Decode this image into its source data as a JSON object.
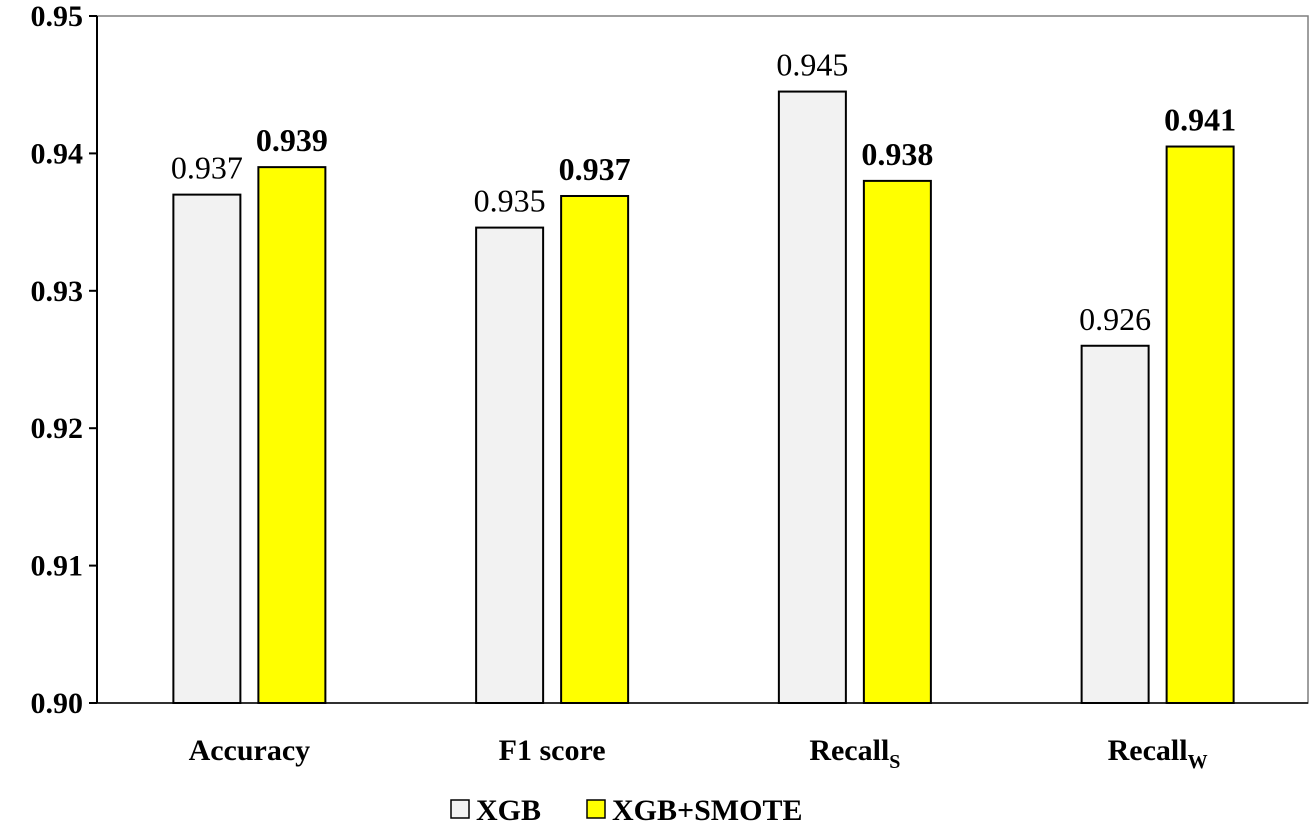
{
  "chart_data": {
    "type": "bar",
    "categories": [
      {
        "label": "Accuracy",
        "sub": ""
      },
      {
        "label": "F1 score",
        "sub": ""
      },
      {
        "label": "Recall",
        "sub": "S"
      },
      {
        "label": "Recall",
        "sub": "W"
      }
    ],
    "series": [
      {
        "name": "XGB",
        "color": "#f2f2f2",
        "values": [
          0.937,
          0.9346,
          0.9445,
          0.926
        ],
        "labels": [
          "0.937",
          "0.935",
          "0.945",
          "0.926"
        ],
        "label_bold": false
      },
      {
        "name": "XGB+SMOTE",
        "color": "#ffff00",
        "values": [
          0.939,
          0.9369,
          0.938,
          0.9405
        ],
        "labels": [
          "0.939",
          "0.937",
          "0.938",
          "0.941"
        ],
        "label_bold": true
      }
    ],
    "yticks": [
      "0.90",
      "0.91",
      "0.92",
      "0.93",
      "0.94",
      "0.95"
    ],
    "ylim": [
      0.9,
      0.95
    ],
    "grid": false,
    "legend": "bottom"
  }
}
